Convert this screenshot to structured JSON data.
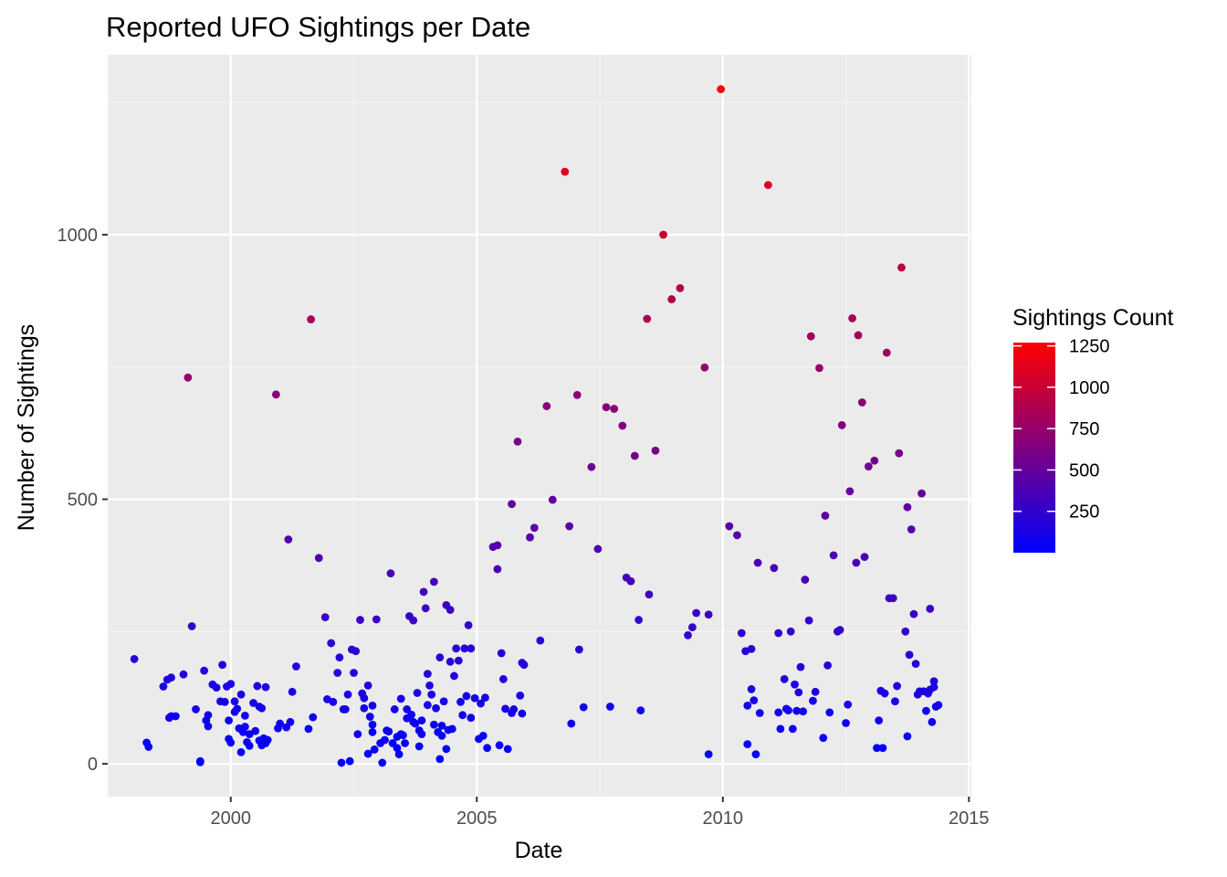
{
  "chart_data": {
    "type": "scatter",
    "title": "Reported UFO Sightings per Date",
    "xlabel": "Date",
    "ylabel": "Number of Sightings",
    "x_ticks": [
      "2000",
      "2005",
      "2010",
      "2015"
    ],
    "y_ticks": [
      "0",
      "500",
      "1000"
    ],
    "xlim": [
      1997.5,
      2015.05
    ],
    "ylim": [
      -62,
      1340
    ],
    "x_tick_values": [
      2000,
      2005,
      2010,
      2015
    ],
    "y_tick_values": [
      0,
      500,
      1000
    ],
    "grid": true,
    "background": "#EBEBEB",
    "legend": {
      "title": "Sightings Count",
      "placement": "right",
      "labels": [
        "1250",
        "1000",
        "750",
        "500",
        "250"
      ],
      "values": [
        1250,
        1000,
        750,
        500,
        250
      ],
      "min": 0,
      "max": 1270,
      "color_low": "#0000FF",
      "color_high": "#FF0000"
    },
    "points": [
      [
        1998.04,
        198
      ],
      [
        1998.29,
        40
      ],
      [
        1998.33,
        32
      ],
      [
        1998.63,
        146
      ],
      [
        1998.71,
        159
      ],
      [
        1998.79,
        163
      ],
      [
        1998.75,
        87
      ],
      [
        1998.79,
        90
      ],
      [
        1998.88,
        90
      ],
      [
        1999.04,
        169
      ],
      [
        1999.13,
        730
      ],
      [
        1999.21,
        260
      ],
      [
        1999.29,
        103
      ],
      [
        1999.38,
        5
      ],
      [
        1999.38,
        3
      ],
      [
        1999.46,
        176
      ],
      [
        1999.5,
        82
      ],
      [
        1999.54,
        92
      ],
      [
        1999.54,
        71
      ],
      [
        1999.63,
        150
      ],
      [
        1999.71,
        144
      ],
      [
        1999.79,
        118
      ],
      [
        1999.83,
        187
      ],
      [
        1999.88,
        117
      ],
      [
        1999.92,
        146
      ],
      [
        1999.96,
        47
      ],
      [
        1999.96,
        82
      ],
      [
        2000,
        151
      ],
      [
        2000,
        40
      ],
      [
        2000.08,
        98
      ],
      [
        2000.08,
        118
      ],
      [
        2000.13,
        104
      ],
      [
        2000.17,
        67
      ],
      [
        2000.21,
        131
      ],
      [
        2000.21,
        22
      ],
      [
        2000.25,
        60
      ],
      [
        2000.29,
        91
      ],
      [
        2000.29,
        70
      ],
      [
        2000.33,
        41
      ],
      [
        2000.38,
        56
      ],
      [
        2000.38,
        34
      ],
      [
        2000.46,
        115
      ],
      [
        2000.5,
        62
      ],
      [
        2000.54,
        147
      ],
      [
        2000.58,
        108
      ],
      [
        2000.58,
        44
      ],
      [
        2000.63,
        105
      ],
      [
        2000.63,
        35
      ],
      [
        2000.67,
        48
      ],
      [
        2000.71,
        145
      ],
      [
        2000.71,
        39
      ],
      [
        2000.75,
        45
      ],
      [
        2000.92,
        698
      ],
      [
        2000.96,
        67
      ],
      [
        2001,
        76
      ],
      [
        2001.13,
        69
      ],
      [
        2001.17,
        424
      ],
      [
        2001.21,
        79
      ],
      [
        2001.25,
        136
      ],
      [
        2001.33,
        184
      ],
      [
        2001.58,
        66
      ],
      [
        2001.63,
        840
      ],
      [
        2001.67,
        88
      ],
      [
        2001.79,
        389
      ],
      [
        2001.92,
        277
      ],
      [
        2001.96,
        122
      ],
      [
        2002.04,
        228
      ],
      [
        2002.08,
        117
      ],
      [
        2002.17,
        172
      ],
      [
        2002.21,
        201
      ],
      [
        2002.25,
        2
      ],
      [
        2002.29,
        103
      ],
      [
        2002.33,
        103
      ],
      [
        2002.38,
        131
      ],
      [
        2002.42,
        5
      ],
      [
        2002.46,
        216
      ],
      [
        2002.5,
        172
      ],
      [
        2002.54,
        213
      ],
      [
        2002.58,
        56
      ],
      [
        2002.63,
        272
      ],
      [
        2002.67,
        133
      ],
      [
        2002.71,
        124
      ],
      [
        2002.71,
        105
      ],
      [
        2002.79,
        19
      ],
      [
        2002.79,
        148
      ],
      [
        2002.83,
        89
      ],
      [
        2002.88,
        110
      ],
      [
        2002.88,
        74
      ],
      [
        2002.88,
        60
      ],
      [
        2002.92,
        27
      ],
      [
        2002.96,
        273
      ],
      [
        2003.04,
        39
      ],
      [
        2003.08,
        2
      ],
      [
        2003.13,
        45
      ],
      [
        2003.17,
        63
      ],
      [
        2003.21,
        61
      ],
      [
        2003.25,
        360
      ],
      [
        2003.29,
        39
      ],
      [
        2003.33,
        103
      ],
      [
        2003.38,
        30
      ],
      [
        2003.38,
        51
      ],
      [
        2003.42,
        18
      ],
      [
        2003.46,
        123
      ],
      [
        2003.46,
        56
      ],
      [
        2003.5,
        54
      ],
      [
        2003.54,
        39
      ],
      [
        2003.58,
        103
      ],
      [
        2003.58,
        86
      ],
      [
        2003.63,
        279
      ],
      [
        2003.67,
        93
      ],
      [
        2003.71,
        79
      ],
      [
        2003.71,
        271
      ],
      [
        2003.75,
        76
      ],
      [
        2003.79,
        134
      ],
      [
        2003.83,
        63
      ],
      [
        2003.83,
        33
      ],
      [
        2003.88,
        82
      ],
      [
        2003.88,
        56
      ],
      [
        2003.92,
        325
      ],
      [
        2003.96,
        294
      ],
      [
        2004,
        170
      ],
      [
        2004,
        111
      ],
      [
        2004.04,
        148
      ],
      [
        2004.08,
        131
      ],
      [
        2004.13,
        74
      ],
      [
        2004.13,
        344
      ],
      [
        2004.17,
        105
      ],
      [
        2004.21,
        60
      ],
      [
        2004.25,
        201
      ],
      [
        2004.25,
        9
      ],
      [
        2004.29,
        72
      ],
      [
        2004.29,
        53
      ],
      [
        2004.33,
        118
      ],
      [
        2004.38,
        300
      ],
      [
        2004.38,
        28
      ],
      [
        2004.42,
        64
      ],
      [
        2004.46,
        193
      ],
      [
        2004.46,
        291
      ],
      [
        2004.5,
        66
      ],
      [
        2004.54,
        166
      ],
      [
        2004.58,
        218
      ],
      [
        2004.63,
        195
      ],
      [
        2004.67,
        117
      ],
      [
        2004.71,
        92
      ],
      [
        2004.75,
        218
      ],
      [
        2004.79,
        128
      ],
      [
        2004.83,
        262
      ],
      [
        2004.88,
        87
      ],
      [
        2004.88,
        218
      ],
      [
        2004.96,
        124
      ],
      [
        2005.04,
        47
      ],
      [
        2005.08,
        114
      ],
      [
        2005.13,
        53
      ],
      [
        2005.17,
        125
      ],
      [
        2005.21,
        30
      ],
      [
        2005.33,
        410
      ],
      [
        2005.42,
        413
      ],
      [
        2005.42,
        368
      ],
      [
        2005.46,
        35
      ],
      [
        2005.5,
        209
      ],
      [
        2005.54,
        160
      ],
      [
        2005.58,
        104
      ],
      [
        2005.63,
        28
      ],
      [
        2005.71,
        491
      ],
      [
        2005.71,
        96
      ],
      [
        2005.75,
        103
      ],
      [
        2005.83,
        609
      ],
      [
        2005.88,
        129
      ],
      [
        2005.92,
        95
      ],
      [
        2005.92,
        191
      ],
      [
        2005.96,
        187
      ],
      [
        2006.08,
        428
      ],
      [
        2006.17,
        446
      ],
      [
        2006.29,
        233
      ],
      [
        2006.42,
        676
      ],
      [
        2006.54,
        499
      ],
      [
        2006.79,
        1119
      ],
      [
        2006.88,
        449
      ],
      [
        2006.92,
        76
      ],
      [
        2007.04,
        697
      ],
      [
        2007.08,
        216
      ],
      [
        2007.17,
        107
      ],
      [
        2007.33,
        561
      ],
      [
        2007.46,
        406
      ],
      [
        2007.63,
        674
      ],
      [
        2007.71,
        108
      ],
      [
        2007.79,
        671
      ],
      [
        2007.96,
        639
      ],
      [
        2008.04,
        352
      ],
      [
        2008.13,
        345
      ],
      [
        2008.21,
        582
      ],
      [
        2008.29,
        272
      ],
      [
        2008.33,
        101
      ],
      [
        2008.46,
        841
      ],
      [
        2008.5,
        320
      ],
      [
        2008.63,
        592
      ],
      [
        2008.79,
        1000
      ],
      [
        2008.96,
        878
      ],
      [
        2009.13,
        899
      ],
      [
        2009.29,
        243
      ],
      [
        2009.38,
        258
      ],
      [
        2009.46,
        285
      ],
      [
        2009.63,
        749
      ],
      [
        2009.71,
        282
      ],
      [
        2009.71,
        18
      ],
      [
        2009.96,
        1275
      ],
      [
        2010.13,
        449
      ],
      [
        2010.29,
        432
      ],
      [
        2010.38,
        247
      ],
      [
        2010.46,
        213
      ],
      [
        2010.5,
        37
      ],
      [
        2010.5,
        110
      ],
      [
        2010.58,
        217
      ],
      [
        2010.58,
        141
      ],
      [
        2010.63,
        120
      ],
      [
        2010.67,
        18
      ],
      [
        2010.71,
        380
      ],
      [
        2010.75,
        96
      ],
      [
        2010.92,
        1094
      ],
      [
        2011.04,
        370
      ],
      [
        2011.13,
        247
      ],
      [
        2011.13,
        97
      ],
      [
        2011.17,
        66
      ],
      [
        2011.25,
        160
      ],
      [
        2011.29,
        104
      ],
      [
        2011.33,
        101
      ],
      [
        2011.38,
        250
      ],
      [
        2011.42,
        66
      ],
      [
        2011.46,
        150
      ],
      [
        2011.5,
        100
      ],
      [
        2011.54,
        135
      ],
      [
        2011.58,
        183
      ],
      [
        2011.63,
        99
      ],
      [
        2011.67,
        348
      ],
      [
        2011.75,
        271
      ],
      [
        2011.79,
        808
      ],
      [
        2011.83,
        119
      ],
      [
        2011.88,
        136
      ],
      [
        2011.96,
        748
      ],
      [
        2012.04,
        49
      ],
      [
        2012.08,
        469
      ],
      [
        2012.13,
        186
      ],
      [
        2012.17,
        97
      ],
      [
        2012.25,
        394
      ],
      [
        2012.33,
        250
      ],
      [
        2012.38,
        253
      ],
      [
        2012.42,
        640
      ],
      [
        2012.5,
        77
      ],
      [
        2012.54,
        112
      ],
      [
        2012.58,
        515
      ],
      [
        2012.63,
        842
      ],
      [
        2012.71,
        380
      ],
      [
        2012.75,
        810
      ],
      [
        2012.83,
        683
      ],
      [
        2012.88,
        391
      ],
      [
        2012.96,
        562
      ],
      [
        2013.08,
        573
      ],
      [
        2013.13,
        30
      ],
      [
        2013.17,
        82
      ],
      [
        2013.21,
        138
      ],
      [
        2013.25,
        30
      ],
      [
        2013.29,
        133
      ],
      [
        2013.33,
        777
      ],
      [
        2013.38,
        313
      ],
      [
        2013.46,
        313
      ],
      [
        2013.5,
        118
      ],
      [
        2013.54,
        147
      ],
      [
        2013.58,
        587
      ],
      [
        2013.63,
        938
      ],
      [
        2013.71,
        250
      ],
      [
        2013.75,
        485
      ],
      [
        2013.75,
        52
      ],
      [
        2013.79,
        206
      ],
      [
        2013.83,
        443
      ],
      [
        2013.88,
        283
      ],
      [
        2013.92,
        189
      ],
      [
        2013.96,
        131
      ],
      [
        2014,
        137
      ],
      [
        2014.04,
        511
      ],
      [
        2014.08,
        137
      ],
      [
        2014.13,
        100
      ],
      [
        2014.17,
        133
      ],
      [
        2014.21,
        293
      ],
      [
        2014.21,
        140
      ],
      [
        2014.25,
        79
      ],
      [
        2014.29,
        156
      ],
      [
        2014.29,
        145
      ],
      [
        2014.33,
        108
      ],
      [
        2014.38,
        111
      ]
    ]
  }
}
